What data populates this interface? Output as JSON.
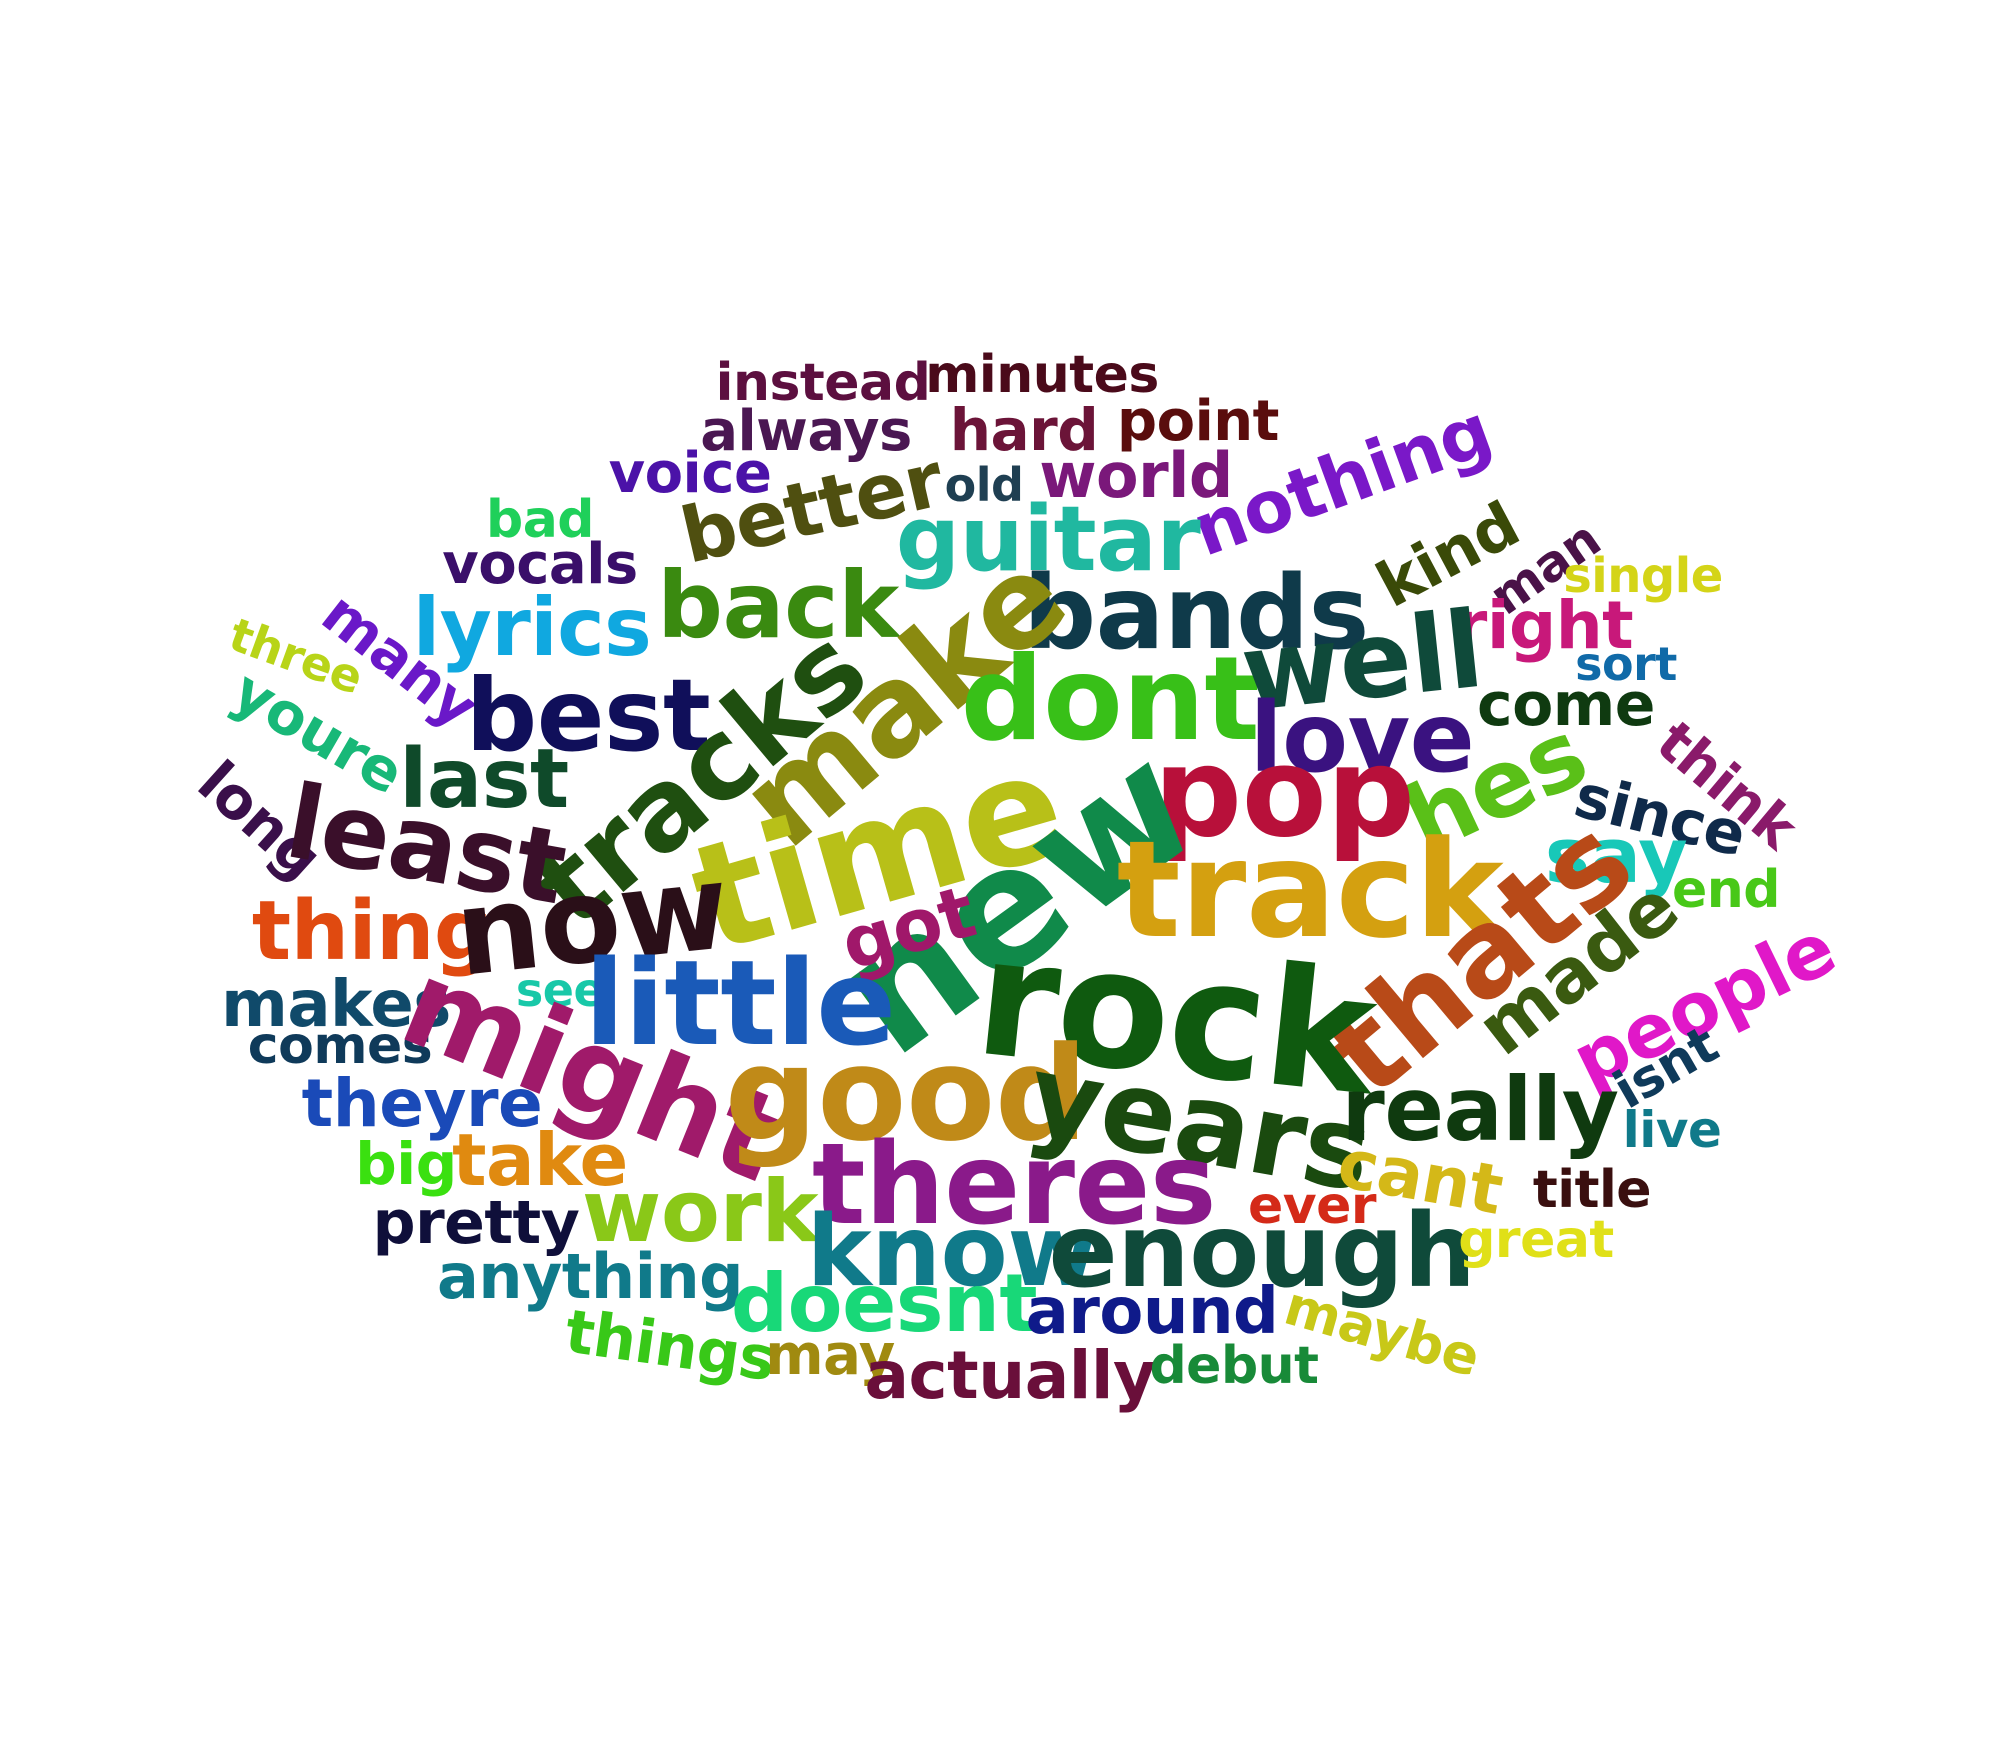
{
  "word_cloud": {
    "words": [
      {
        "text": "instead",
        "color": "#5c0f3f"
      },
      {
        "text": "minutes",
        "color": "#4a0a1a"
      },
      {
        "text": "always",
        "color": "#4a1752"
      },
      {
        "text": "hard",
        "color": "#6b1438"
      },
      {
        "text": "point",
        "color": "#5a0d0d"
      },
      {
        "text": "voice",
        "color": "#4b12a8"
      },
      {
        "text": "better",
        "color": "#4f4f10"
      },
      {
        "text": "old",
        "color": "#1f3f52"
      },
      {
        "text": "world",
        "color": "#7a187a"
      },
      {
        "text": "nothing",
        "color": "#7a18c8"
      },
      {
        "text": "bad",
        "color": "#1fd05a"
      },
      {
        "text": "vocals",
        "color": "#3a0f6a"
      },
      {
        "text": "guitar",
        "color": "#20b8a0"
      },
      {
        "text": "kind",
        "color": "#3a4a08"
      },
      {
        "text": "man",
        "color": "#4a1248"
      },
      {
        "text": "single",
        "color": "#d4d418"
      },
      {
        "text": "many",
        "color": "#6a18c8"
      },
      {
        "text": "lyrics",
        "color": "#10a8e0"
      },
      {
        "text": "back",
        "color": "#3a8a10"
      },
      {
        "text": "bands",
        "color": "#0f3a4a"
      },
      {
        "text": "right",
        "color": "#c8187a"
      },
      {
        "text": "three",
        "color": "#b8d418"
      },
      {
        "text": "make",
        "color": "#8a8a10"
      },
      {
        "text": "dont",
        "color": "#38c018"
      },
      {
        "text": "well",
        "color": "#0f4a3a"
      },
      {
        "text": "sort",
        "color": "#106aa8"
      },
      {
        "text": "youre",
        "color": "#18b878"
      },
      {
        "text": "best",
        "color": "#100f5a"
      },
      {
        "text": "tracks",
        "color": "#1f4f10"
      },
      {
        "text": "love",
        "color": "#3a1280"
      },
      {
        "text": "come",
        "color": "#0f3a10"
      },
      {
        "text": "think",
        "color": "#8a1a6a"
      },
      {
        "text": "last",
        "color": "#0f4a2a"
      },
      {
        "text": "hes",
        "color": "#5ac018"
      },
      {
        "text": "long",
        "color": "#3a0f4a"
      },
      {
        "text": "least",
        "color": "#3a0f2a"
      },
      {
        "text": "time",
        "color": "#b8c018"
      },
      {
        "text": "pop",
        "color": "#b8103a"
      },
      {
        "text": "since",
        "color": "#0f2a4a"
      },
      {
        "text": "say",
        "color": "#18c8b8"
      },
      {
        "text": "new",
        "color": "#108a4a"
      },
      {
        "text": "track",
        "color": "#d4a010"
      },
      {
        "text": "end",
        "color": "#48c818"
      },
      {
        "text": "thing",
        "color": "#e04a10"
      },
      {
        "text": "now",
        "color": "#2a0f18"
      },
      {
        "text": "got",
        "color": "#a0186a"
      },
      {
        "text": "thats",
        "color": "#b84a18"
      },
      {
        "text": "made",
        "color": "#3a5a10"
      },
      {
        "text": "people",
        "color": "#e018c8"
      },
      {
        "text": "makes",
        "color": "#104a6a"
      },
      {
        "text": "see",
        "color": "#18c8a8"
      },
      {
        "text": "little",
        "color": "#1a5ab8"
      },
      {
        "text": "comes",
        "color": "#0f3a5a"
      },
      {
        "text": "might",
        "color": "#a01a6a"
      },
      {
        "text": "rock",
        "color": "#0f5a0f"
      },
      {
        "text": "isnt",
        "color": "#0f3a5a"
      },
      {
        "text": "theyre",
        "color": "#1a4ab8"
      },
      {
        "text": "good",
        "color": "#c08a18"
      },
      {
        "text": "years",
        "color": "#1a4a0f"
      },
      {
        "text": "really",
        "color": "#0f3a0f"
      },
      {
        "text": "live",
        "color": "#107a8a"
      },
      {
        "text": "big",
        "color": "#3ae010"
      },
      {
        "text": "take",
        "color": "#e08a10"
      },
      {
        "text": "theres",
        "color": "#8a1a8a"
      },
      {
        "text": "cant",
        "color": "#d4b818"
      },
      {
        "text": "title",
        "color": "#3a0f0f"
      },
      {
        "text": "work",
        "color": "#8ac818"
      },
      {
        "text": "ever",
        "color": "#d42a18"
      },
      {
        "text": "pretty",
        "color": "#0f0f3a"
      },
      {
        "text": "know",
        "color": "#107a8a"
      },
      {
        "text": "enough",
        "color": "#0f4a3a"
      },
      {
        "text": "great",
        "color": "#e0e018"
      },
      {
        "text": "anything",
        "color": "#107a8a"
      },
      {
        "text": "doesnt",
        "color": "#18d878"
      },
      {
        "text": "around",
        "color": "#0f1a8a"
      },
      {
        "text": "maybe",
        "color": "#c8c818"
      },
      {
        "text": "things",
        "color": "#38c818"
      },
      {
        "text": "may",
        "color": "#a08a10"
      },
      {
        "text": "actually",
        "color": "#6a0f3a"
      },
      {
        "text": "debut",
        "color": "#188a38"
      }
    ]
  }
}
